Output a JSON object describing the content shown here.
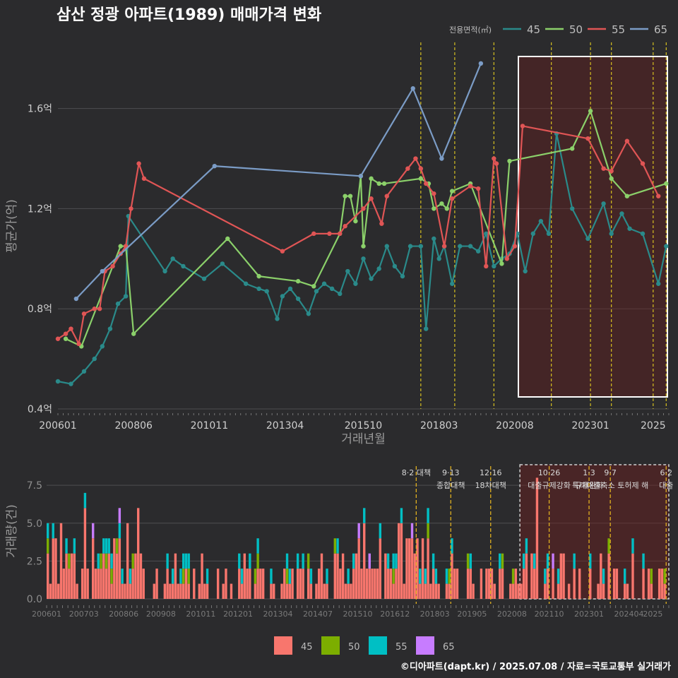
{
  "title": "삼산 정광 아파트(1989) 매매가격 변화",
  "footer": "©디아파트(dapt.kr) / 2025.07.08 / 자료=국토교통부 실거래가",
  "colors": {
    "bg": "#2b2b2d",
    "grid": "#4a4a4c",
    "text": "#cfcfcf"
  },
  "chart_data": [
    {
      "type": "line",
      "title": "삼산 정광 아파트(1989) 매매가격 변화",
      "xlabel": "거래년월",
      "ylabel": "평균가(억)",
      "ylim": [
        0.4,
        1.85
      ],
      "x_ticks": [
        "200601",
        "200806",
        "201011",
        "201304",
        "201510",
        "201803",
        "202008",
        "202301",
        "2025"
      ],
      "y_ticks": [
        "0.4억",
        "0.8억",
        "1.2억",
        "1.6억"
      ],
      "legend_title": "전용면적(㎡)",
      "legend_position": "top-right",
      "policy_lines": [
        "2017-08",
        "2018-09",
        "2019-12",
        "2021-10",
        "2023-01",
        "2023-09",
        "2025-01",
        "2025-06"
      ],
      "highlight_period": [
        "2020-11",
        "2025-07"
      ],
      "series": [
        {
          "name": "45",
          "color": "#2a8a8a",
          "x": [
            "2006-01",
            "2006-06",
            "2006-11",
            "2007-03",
            "2007-06",
            "2007-09",
            "2007-12",
            "2008-03",
            "2008-04",
            "2009-06",
            "2009-09",
            "2010-01",
            "2010-09",
            "2011-04",
            "2012-01",
            "2012-06",
            "2012-09",
            "2013-01",
            "2013-03",
            "2013-06",
            "2013-09",
            "2014-01",
            "2014-04",
            "2014-07",
            "2014-10",
            "2015-01",
            "2015-04",
            "2015-07",
            "2015-10",
            "2016-01",
            "2016-04",
            "2016-07",
            "2016-10",
            "2017-01",
            "2017-04",
            "2017-08",
            "2017-10",
            "2018-01",
            "2018-03",
            "2018-05",
            "2018-08",
            "2018-11",
            "2019-03",
            "2019-06",
            "2019-09",
            "2019-12",
            "2020-03",
            "2020-06",
            "2020-09",
            "2020-12",
            "2021-03",
            "2021-06",
            "2021-09",
            "2021-12",
            "2022-06",
            "2022-12",
            "2023-06",
            "2023-09",
            "2024-01",
            "2024-04",
            "2024-09",
            "2025-03",
            "2025-06"
          ],
          "values": [
            0.51,
            0.5,
            0.55,
            0.6,
            0.65,
            0.72,
            0.82,
            0.85,
            1.17,
            0.95,
            1.0,
            0.97,
            0.92,
            0.98,
            0.9,
            0.88,
            0.87,
            0.76,
            0.85,
            0.88,
            0.84,
            0.78,
            0.87,
            0.9,
            0.88,
            0.86,
            0.95,
            0.9,
            1.0,
            0.92,
            0.96,
            1.05,
            0.97,
            0.93,
            1.05,
            1.05,
            0.72,
            1.08,
            1.0,
            1.05,
            0.9,
            1.05,
            1.05,
            1.03,
            1.1,
            0.97,
            1.0,
            1.02,
            1.1,
            0.95,
            1.1,
            1.15,
            1.1,
            1.5,
            1.2,
            1.08,
            1.22,
            1.1,
            1.18,
            1.12,
            1.1,
            0.9,
            1.05
          ]
        },
        {
          "name": "50",
          "color": "#8bd06a",
          "x": [
            "2006-04",
            "2006-10",
            "2008-01",
            "2008-03",
            "2008-06",
            "2011-06",
            "2012-06",
            "2013-09",
            "2014-03",
            "2015-01",
            "2015-03",
            "2015-05",
            "2015-07",
            "2015-09",
            "2015-10",
            "2016-01",
            "2016-04",
            "2016-06",
            "2017-08",
            "2017-11",
            "2018-01",
            "2018-04",
            "2018-06",
            "2018-08",
            "2019-03",
            "2020-03",
            "2020-06",
            "2022-06",
            "2023-01",
            "2023-09",
            "2024-03",
            "2025-06"
          ],
          "values": [
            0.68,
            0.65,
            1.05,
            1.05,
            0.7,
            1.08,
            0.93,
            0.91,
            0.89,
            1.1,
            1.25,
            1.25,
            1.15,
            1.33,
            1.05,
            1.32,
            1.3,
            1.3,
            1.32,
            1.3,
            1.2,
            1.22,
            1.2,
            1.27,
            1.3,
            0.98,
            1.39,
            1.44,
            1.59,
            1.32,
            1.25,
            1.3
          ]
        },
        {
          "name": "55",
          "color": "#e05555",
          "x": [
            "2006-01",
            "2006-04",
            "2006-06",
            "2006-09",
            "2006-11",
            "2007-03",
            "2007-05",
            "2007-07",
            "2007-10",
            "2008-01",
            "2008-03",
            "2008-05",
            "2008-08",
            "2008-10",
            "2013-03",
            "2014-03",
            "2014-09",
            "2015-01",
            "2015-03",
            "2015-10",
            "2016-01",
            "2016-05",
            "2016-07",
            "2017-03",
            "2017-06",
            "2017-08",
            "2017-10",
            "2018-01",
            "2018-05",
            "2018-08",
            "2019-03",
            "2019-06",
            "2019-09",
            "2019-12",
            "2020-01",
            "2020-05",
            "2020-08",
            "2020-11",
            "2022-12",
            "2023-06",
            "2023-09",
            "2024-03",
            "2024-09",
            "2025-03"
          ],
          "values": [
            0.68,
            0.7,
            0.72,
            0.66,
            0.78,
            0.8,
            0.8,
            0.95,
            0.97,
            1.02,
            1.05,
            1.2,
            1.38,
            1.32,
            1.03,
            1.1,
            1.1,
            1.1,
            1.13,
            1.2,
            1.24,
            1.14,
            1.25,
            1.36,
            1.4,
            1.36,
            1.3,
            1.26,
            1.05,
            1.24,
            1.29,
            1.28,
            0.97,
            1.4,
            1.38,
            1.0,
            1.05,
            1.53,
            1.48,
            1.36,
            1.35,
            1.47,
            1.38,
            1.25
          ]
        },
        {
          "name": "65",
          "color": "#7b9cc6",
          "x": [
            "2006-08",
            "2007-06",
            "2011-01",
            "2015-09",
            "2017-05",
            "2018-04",
            "2019-07"
          ],
          "values": [
            0.84,
            0.95,
            1.37,
            1.33,
            1.68,
            1.4,
            1.78
          ]
        }
      ]
    },
    {
      "type": "bar",
      "xlabel": "",
      "ylabel": "거래량(건)",
      "ylim": [
        0,
        9
      ],
      "x_ticks": [
        "200601",
        "200703",
        "200806",
        "200908",
        "201011",
        "201201",
        "201304",
        "201407",
        "201510",
        "201612",
        "201803",
        "201905",
        "202008",
        "202110",
        "202301",
        "202404",
        "2025"
      ],
      "y_ticks": [
        "0.0",
        "2.5",
        "5.0",
        "7.5"
      ],
      "legend_position": "bottom",
      "legend": [
        {
          "name": "45",
          "color": "#f8766d"
        },
        {
          "name": "50",
          "color": "#7cae00"
        },
        {
          "name": "55",
          "color": "#00bfc4"
        },
        {
          "name": "65",
          "color": "#c77cff"
        }
      ],
      "annotations": [
        {
          "date": "2017-08",
          "label": "8·2 대책",
          "sub": ""
        },
        {
          "date": "2018-09",
          "label": "9·13",
          "sub": "종합대책"
        },
        {
          "date": "2019-12",
          "label": "12·16",
          "sub": "18차대책"
        },
        {
          "date": "2021-10",
          "label": "10·26",
          "sub": "대출규제강화"
        },
        {
          "date": "2023-01",
          "label": "1·3",
          "sub": "규제완화"
        },
        {
          "date": "2023-09",
          "label": "9·7",
          "sub": "특례대출축소 토허제 해"
        },
        {
          "date": "2025-06",
          "label": "6·2",
          "sub": "대출"
        }
      ],
      "highlight_period": [
        "2020-11",
        "2025-07"
      ]
    }
  ]
}
